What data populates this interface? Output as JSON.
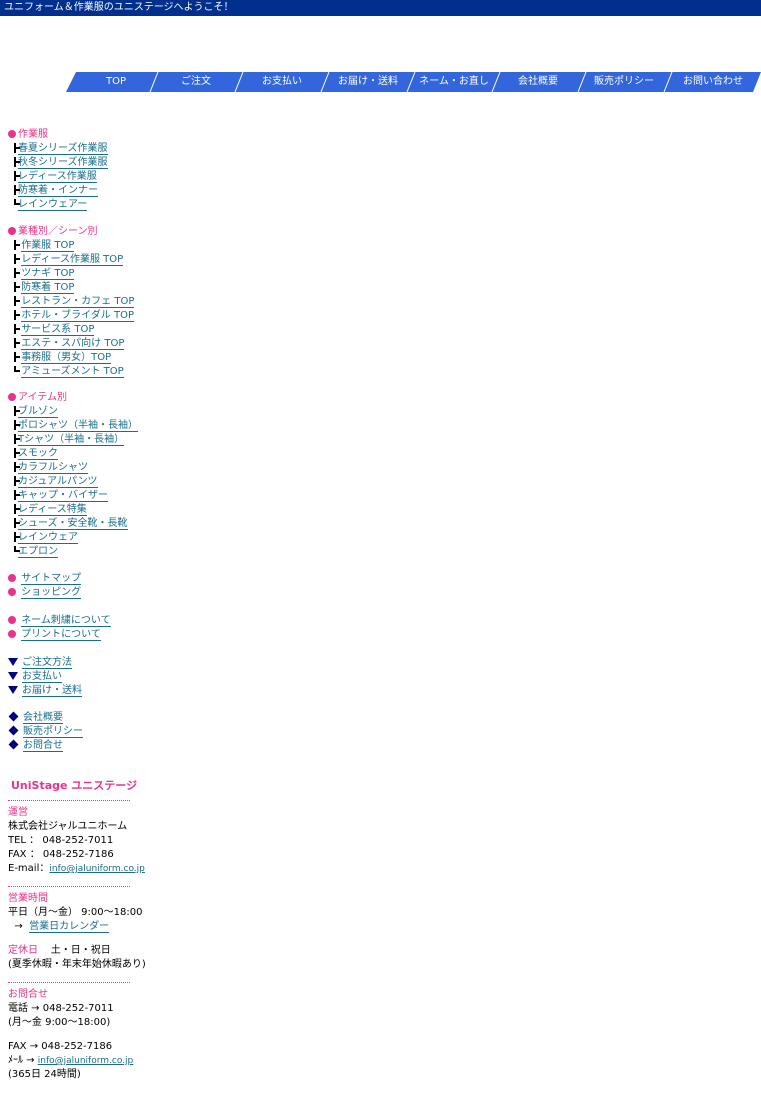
{
  "topbar": {
    "text": "ユニフォーム＆作業服のユニステージへようこそ！"
  },
  "nav": {
    "color": "#3366dd",
    "items": [
      "TOP",
      "ご注文",
      "お支払い",
      "お届け・送料",
      "ネーム・お直し",
      "会社概要",
      "販売ポリシー",
      "お問い合わせ"
    ]
  },
  "sections": {
    "work": {
      "title": "作業服",
      "items": [
        "春夏シリーズ作業服",
        "秋冬シリーズ作業服",
        "レディース作業服",
        "防寒着・インナー",
        "レインウェアー"
      ]
    },
    "scene": {
      "title": "業種別／シーン別",
      "items": [
        "作業服 TOP",
        "レディース作業服 TOP",
        "ツナギ TOP",
        "防寒着 TOP",
        "レストラン・カフェ TOP",
        "ホテル・ブライダル TOP",
        "サービス系 TOP",
        "エステ・スパ向け TOP",
        "事務服（男女）TOP",
        "アミューズメント TOP"
      ]
    },
    "item": {
      "title": "アイテム別",
      "items": [
        "ブルゾン",
        "ポロシャツ（半袖・長袖）",
        "Tシャツ（半袖・長袖）",
        "スモック",
        "カラフルシャツ",
        "カジュアルパンツ",
        "キャップ・バイザー",
        "レディース特集",
        "シューズ・安全靴・長靴",
        "レインウェア",
        "エプロン"
      ]
    },
    "misc1": [
      "サイトマップ",
      "ショッピング"
    ],
    "misc2": [
      "ネーム刺繍について",
      "プリントについて"
    ],
    "order": [
      "ご注文方法",
      "お支払い",
      "お届け・送料"
    ],
    "company": [
      "会社概要",
      "販売ポリシー",
      "お問合せ"
    ]
  },
  "info": {
    "brand": "UniStage ユニステージ",
    "operator_label": "運営",
    "operator": "株式会社ジャルユニホーム",
    "tel": "TEL ： 048-252-7011",
    "fax": "FAX ： 048-252-7186",
    "email_label": "E-mail：",
    "email": "info@jaluniform.co.jp",
    "hours_label": "営業時間",
    "hours": "平日（月～金） 9:00～18:00",
    "calendar_arrow": "→",
    "calendar": "営業日カレンダー",
    "holiday_label": "定休日",
    "holiday": "土・日・祝日",
    "holiday_note": "(夏季休暇・年末年始休暇あり)",
    "contact_label": "お問合せ",
    "phone_line": "電話 → 048-252-7011",
    "phone_hours": "(月～金 9:00～18:00)",
    "fax_line": "FAX → 048-252-7186",
    "mail_label": "ﾒｰﾙ →",
    "mail": "info@jaluniform.co.jp",
    "mail_hours": "(365日 24時間)"
  }
}
